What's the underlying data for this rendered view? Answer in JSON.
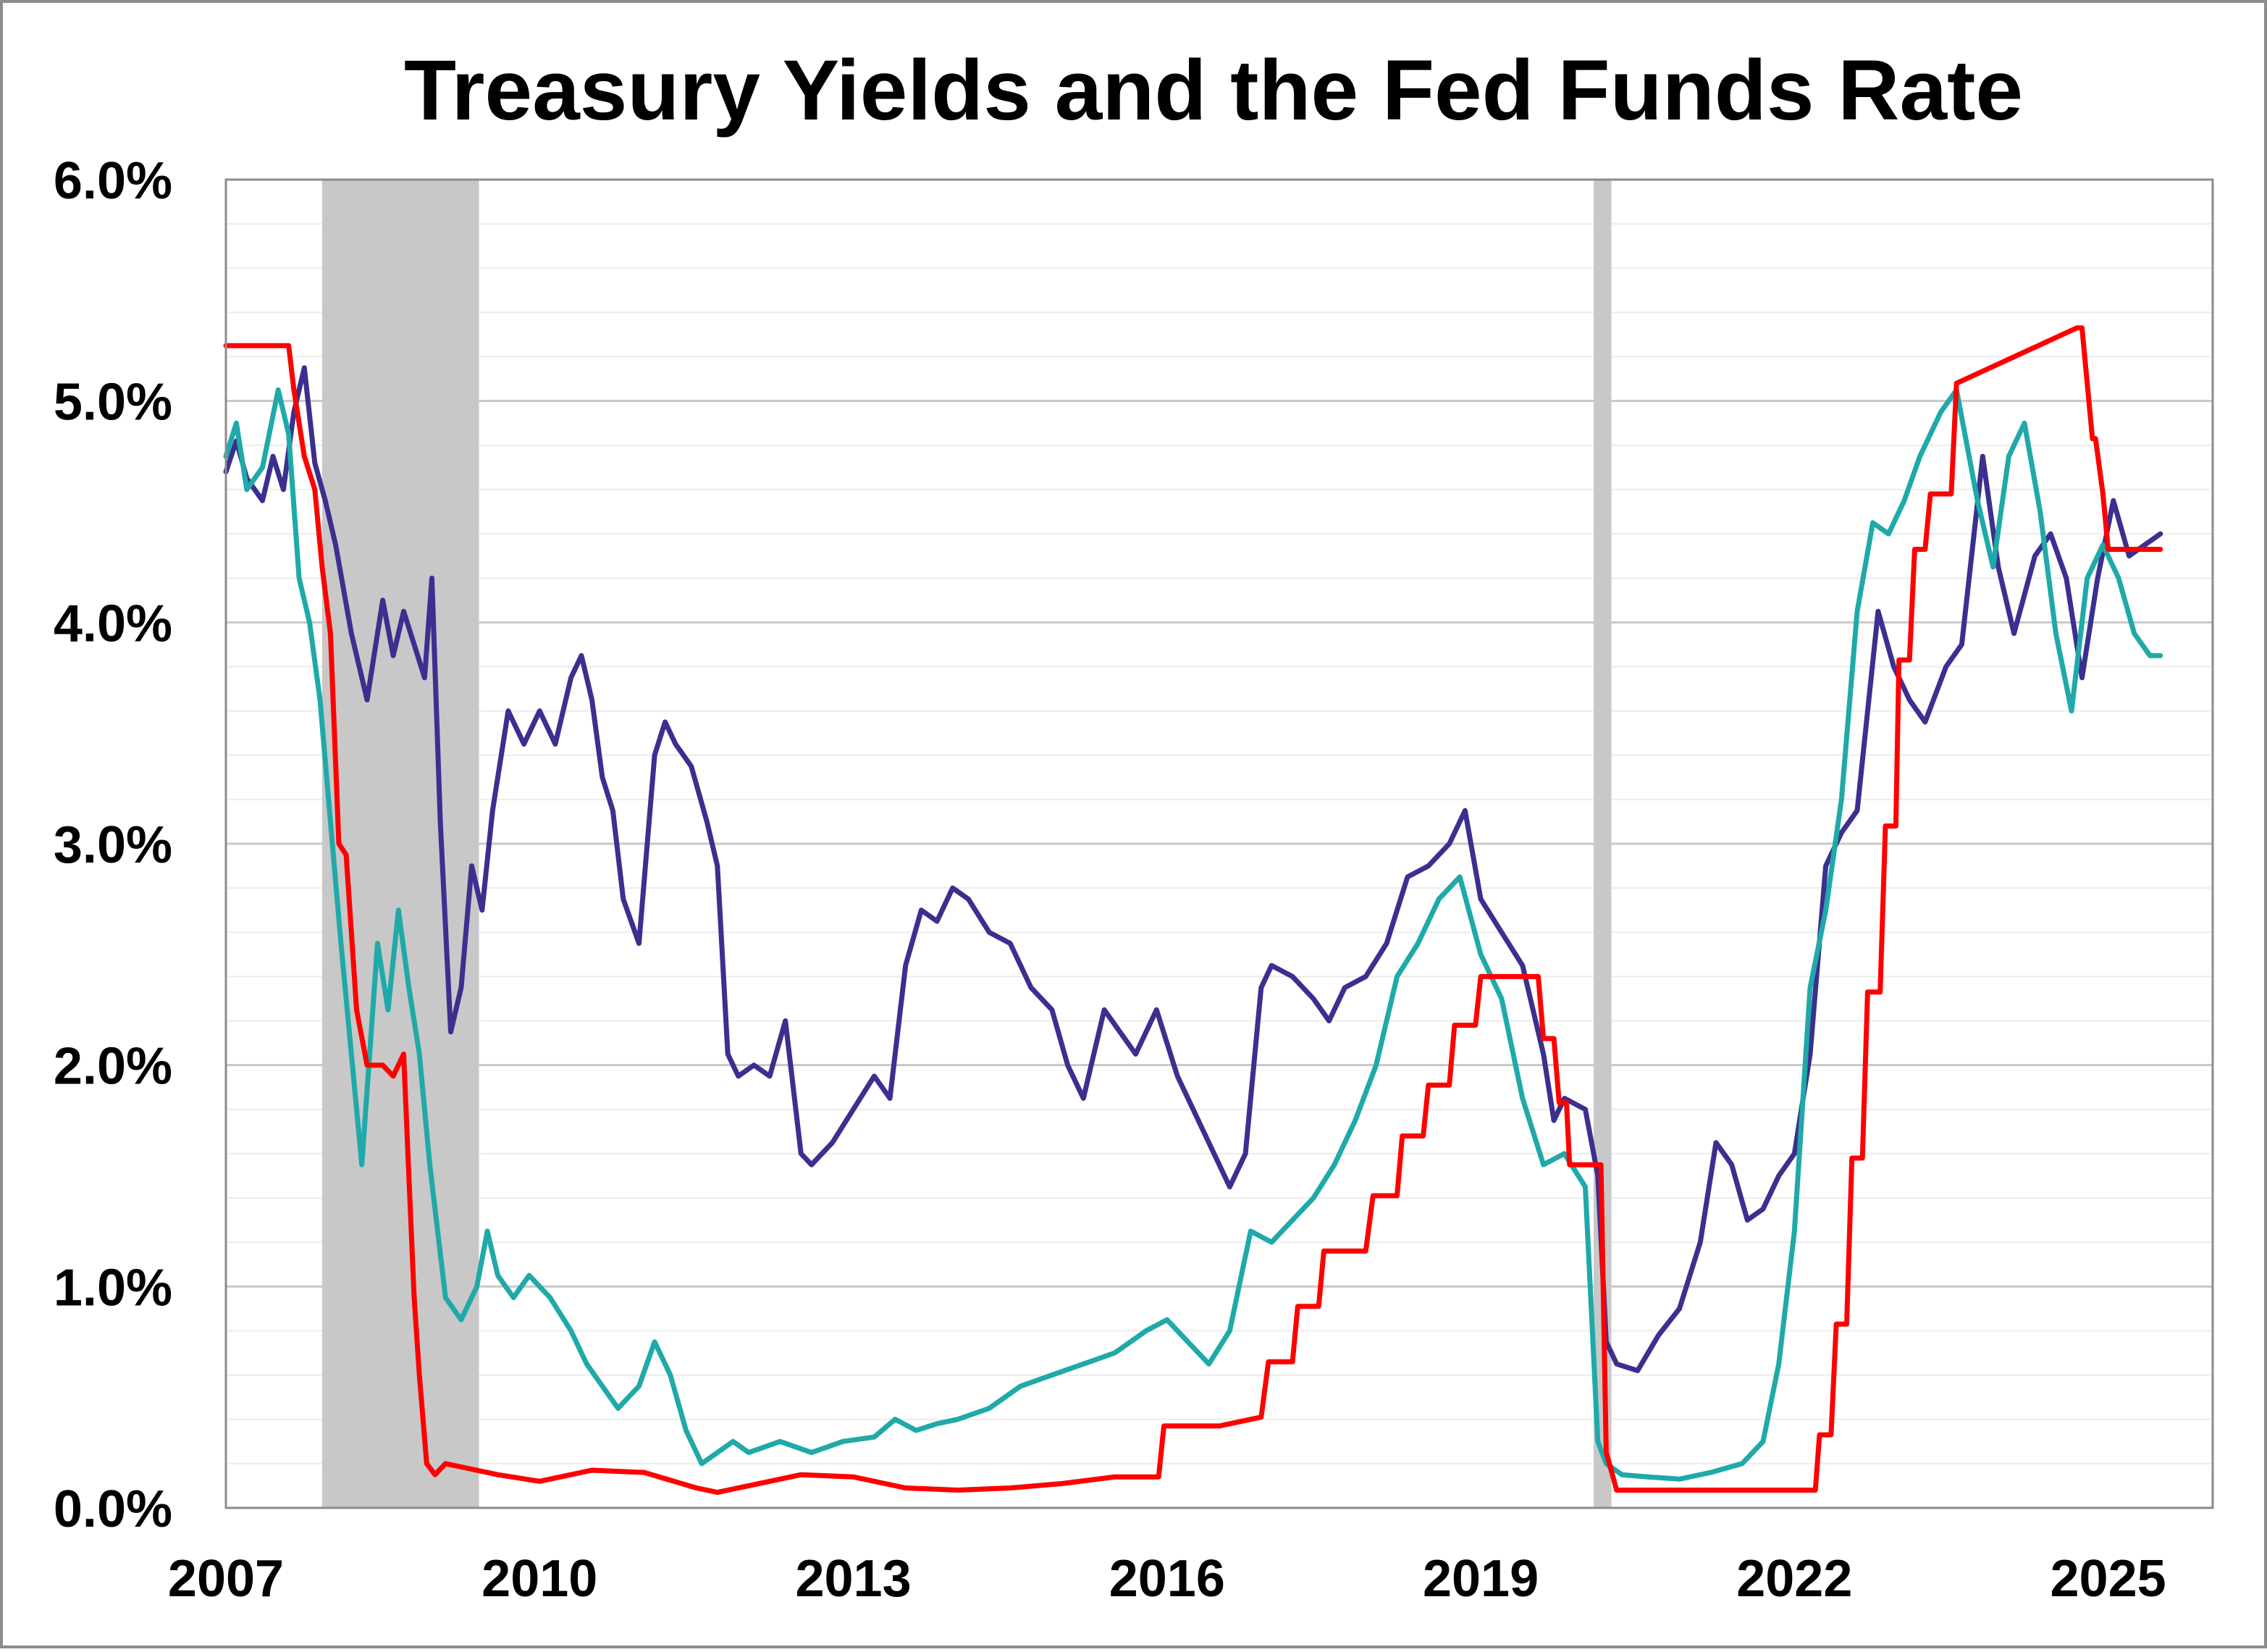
{
  "chart_data": {
    "type": "line",
    "title": "Treasury Yields and the Fed Funds Rate",
    "xlabel": "",
    "ylabel": "",
    "xlim": [
      2007.0,
      2026.0
    ],
    "ylim": [
      0,
      6.0
    ],
    "x_ticks": [
      2007,
      2010,
      2013,
      2016,
      2019,
      2022,
      2025
    ],
    "x_tick_labels": [
      "2007",
      "2010",
      "2013",
      "2016",
      "2019",
      "2022",
      "2025"
    ],
    "y_ticks": [
      0,
      1,
      2,
      3,
      4,
      5,
      6
    ],
    "y_tick_labels": [
      "0.0%",
      "1.0%",
      "2.0%",
      "3.0%",
      "4.0%",
      "5.0%",
      "6.0%"
    ],
    "grid": {
      "major_y": true,
      "minor_y_step": 0.2,
      "x": false
    },
    "legend": "none",
    "recessions": [
      {
        "start": 2007.92,
        "end": 2009.42
      },
      {
        "start": 2020.08,
        "end": 2020.25
      }
    ],
    "series": [
      {
        "color": "#3B2F8F",
        "x": [
          2007.0,
          2007.1,
          2007.2,
          2007.35,
          2007.45,
          2007.55,
          2007.65,
          2007.75,
          2007.85,
          2007.95,
          2008.05,
          2008.2,
          2008.35,
          2008.5,
          2008.6,
          2008.7,
          2008.8,
          2008.9,
          2008.97,
          2009.05,
          2009.15,
          2009.25,
          2009.35,
          2009.45,
          2009.55,
          2009.7,
          2009.85,
          2010.0,
          2010.15,
          2010.3,
          2010.4,
          2010.5,
          2010.6,
          2010.7,
          2010.8,
          2010.95,
          2011.1,
          2011.2,
          2011.3,
          2011.45,
          2011.6,
          2011.7,
          2011.8,
          2011.9,
          2012.05,
          2012.2,
          2012.35,
          2012.5,
          2012.6,
          2012.8,
          2013.0,
          2013.2,
          2013.35,
          2013.5,
          2013.65,
          2013.8,
          2013.95,
          2014.1,
          2014.3,
          2014.5,
          2014.7,
          2014.9,
          2015.05,
          2015.2,
          2015.4,
          2015.55,
          2015.7,
          2015.9,
          2016.1,
          2016.3,
          2016.5,
          2016.6,
          2016.75,
          2016.9,
          2017.0,
          2017.2,
          2017.4,
          2017.55,
          2017.7,
          2017.9,
          2018.1,
          2018.3,
          2018.5,
          2018.7,
          2018.85,
          2019.0,
          2019.2,
          2019.4,
          2019.6,
          2019.7,
          2019.8,
          2020.0,
          2020.12,
          2020.2,
          2020.3,
          2020.5,
          2020.7,
          2020.9,
          2021.1,
          2021.25,
          2021.4,
          2021.55,
          2021.7,
          2021.85,
          2022.0,
          2022.15,
          2022.3,
          2022.45,
          2022.6,
          2022.8,
          2022.95,
          2023.1,
          2023.25,
          2023.45,
          2023.6,
          2023.8,
          2023.95,
          2024.1,
          2024.3,
          2024.45,
          2024.6,
          2024.75,
          2024.9,
          2025.05,
          2025.2,
          2025.35,
          2025.5
        ],
        "y": [
          4.68,
          4.82,
          4.65,
          4.55,
          4.75,
          4.6,
          4.95,
          5.15,
          4.72,
          4.55,
          4.35,
          3.95,
          3.65,
          4.1,
          3.85,
          4.05,
          3.9,
          3.75,
          4.2,
          3.1,
          2.15,
          2.35,
          2.9,
          2.7,
          3.15,
          3.6,
          3.45,
          3.6,
          3.45,
          3.75,
          3.85,
          3.65,
          3.3,
          3.15,
          2.75,
          2.55,
          3.4,
          3.55,
          3.45,
          3.35,
          3.1,
          2.9,
          2.05,
          1.95,
          2.0,
          1.95,
          2.2,
          1.6,
          1.55,
          1.65,
          1.8,
          1.95,
          1.85,
          2.45,
          2.7,
          2.65,
          2.8,
          2.75,
          2.6,
          2.55,
          2.35,
          2.25,
          2.0,
          1.85,
          2.25,
          2.15,
          2.05,
          2.25,
          1.95,
          1.75,
          1.55,
          1.45,
          1.6,
          2.35,
          2.45,
          2.4,
          2.3,
          2.2,
          2.35,
          2.4,
          2.55,
          2.85,
          2.9,
          3.0,
          3.15,
          2.75,
          2.6,
          2.45,
          2.05,
          1.75,
          1.85,
          1.8,
          1.5,
          0.75,
          0.65,
          0.62,
          0.78,
          0.9,
          1.2,
          1.65,
          1.55,
          1.3,
          1.35,
          1.5,
          1.6,
          2.05,
          2.9,
          3.05,
          3.15,
          4.05,
          3.8,
          3.65,
          3.55,
          3.8,
          3.9,
          4.75,
          4.25,
          3.95,
          4.3,
          4.4,
          4.2,
          3.75,
          4.2,
          4.55,
          4.3,
          4.35,
          4.4
        ]
      },
      {
        "color": "#1FA9A9",
        "x": [
          2007.0,
          2007.1,
          2007.2,
          2007.35,
          2007.5,
          2007.6,
          2007.7,
          2007.8,
          2007.9,
          2008.0,
          2008.1,
          2008.2,
          2008.3,
          2008.45,
          2008.55,
          2008.65,
          2008.75,
          2008.85,
          2008.95,
          2009.1,
          2009.25,
          2009.4,
          2009.5,
          2009.6,
          2009.75,
          2009.9,
          2010.1,
          2010.3,
          2010.45,
          2010.6,
          2010.75,
          2010.95,
          2011.1,
          2011.25,
          2011.4,
          2011.55,
          2011.7,
          2011.85,
          2012.0,
          2012.3,
          2012.6,
          2012.9,
          2013.2,
          2013.4,
          2013.6,
          2013.8,
          2014.0,
          2014.3,
          2014.6,
          2014.9,
          2015.2,
          2015.5,
          2015.8,
          2016.0,
          2016.2,
          2016.4,
          2016.6,
          2016.8,
          2017.0,
          2017.2,
          2017.4,
          2017.6,
          2017.8,
          2018.0,
          2018.2,
          2018.4,
          2018.6,
          2018.8,
          2019.0,
          2019.2,
          2019.4,
          2019.6,
          2019.8,
          2020.0,
          2020.12,
          2020.2,
          2020.35,
          2020.6,
          2020.9,
          2021.2,
          2021.5,
          2021.7,
          2021.85,
          2022.0,
          2022.15,
          2022.3,
          2022.45,
          2022.6,
          2022.75,
          2022.9,
          2023.05,
          2023.2,
          2023.4,
          2023.55,
          2023.75,
          2023.9,
          2024.05,
          2024.2,
          2024.35,
          2024.5,
          2024.65,
          2024.8,
          2024.95,
          2025.1,
          2025.25,
          2025.4,
          2025.5
        ],
        "y": [
          4.75,
          4.9,
          4.6,
          4.7,
          5.05,
          4.85,
          4.2,
          4.0,
          3.65,
          3.1,
          2.55,
          2.05,
          1.55,
          2.55,
          2.25,
          2.7,
          2.35,
          2.05,
          1.55,
          0.95,
          0.85,
          1.0,
          1.25,
          1.05,
          0.95,
          1.05,
          0.95,
          0.8,
          0.65,
          0.55,
          0.45,
          0.55,
          0.75,
          0.6,
          0.35,
          0.2,
          0.25,
          0.3,
          0.25,
          0.3,
          0.25,
          0.3,
          0.32,
          0.4,
          0.35,
          0.38,
          0.4,
          0.45,
          0.55,
          0.6,
          0.65,
          0.7,
          0.8,
          0.85,
          0.75,
          0.65,
          0.8,
          1.25,
          1.2,
          1.3,
          1.4,
          1.55,
          1.75,
          2.0,
          2.4,
          2.55,
          2.75,
          2.85,
          2.5,
          2.3,
          1.85,
          1.55,
          1.6,
          1.45,
          0.3,
          0.2,
          0.15,
          0.14,
          0.13,
          0.16,
          0.2,
          0.3,
          0.65,
          1.25,
          2.35,
          2.7,
          3.2,
          4.05,
          4.45,
          4.4,
          4.55,
          4.75,
          4.95,
          5.05,
          4.55,
          4.25,
          4.75,
          4.9,
          4.5,
          3.95,
          3.6,
          4.2,
          4.35,
          4.2,
          3.95,
          3.85,
          3.85
        ]
      },
      {
        "color": "#FF0000",
        "x": [
          2007.0,
          2007.6,
          2007.65,
          2007.75,
          2007.85,
          2007.92,
          2008.0,
          2008.08,
          2008.15,
          2008.25,
          2008.35,
          2008.5,
          2008.6,
          2008.7,
          2008.75,
          2008.8,
          2008.85,
          2008.92,
          2009.0,
          2009.1,
          2009.3,
          2009.6,
          2010.0,
          2010.5,
          2011.0,
          2011.5,
          2011.7,
          2012.0,
          2012.5,
          2013.0,
          2013.5,
          2014.0,
          2014.5,
          2015.0,
          2015.5,
          2015.92,
          2015.97,
          2016.5,
          2016.9,
          2016.97,
          2017.2,
          2017.25,
          2017.45,
          2017.5,
          2017.9,
          2017.97,
          2018.2,
          2018.25,
          2018.45,
          2018.5,
          2018.7,
          2018.75,
          2018.95,
          2019.0,
          2019.55,
          2019.6,
          2019.7,
          2019.75,
          2019.82,
          2019.85,
          2020.15,
          2020.2,
          2020.3,
          2021.0,
          2021.5,
          2022.0,
          2022.2,
          2022.24,
          2022.35,
          2022.4,
          2022.5,
          2022.55,
          2022.65,
          2022.7,
          2022.82,
          2022.87,
          2022.97,
          2023.0,
          2023.1,
          2023.15,
          2023.25,
          2023.3,
          2023.5,
          2023.55,
          2024.7,
          2024.75,
          2024.85,
          2024.88,
          2024.95,
          2025.0,
          2025.5
        ],
        "y": [
          5.25,
          5.25,
          5.05,
          4.75,
          4.6,
          4.25,
          3.95,
          3.0,
          2.95,
          2.25,
          2.0,
          2.0,
          1.95,
          2.05,
          1.5,
          0.95,
          0.6,
          0.2,
          0.15,
          0.2,
          0.18,
          0.15,
          0.12,
          0.17,
          0.16,
          0.09,
          0.07,
          0.1,
          0.15,
          0.14,
          0.09,
          0.08,
          0.09,
          0.11,
          0.14,
          0.14,
          0.37,
          0.37,
          0.41,
          0.66,
          0.66,
          0.91,
          0.91,
          1.16,
          1.16,
          1.41,
          1.41,
          1.68,
          1.68,
          1.91,
          1.91,
          2.18,
          2.18,
          2.4,
          2.4,
          2.12,
          2.12,
          1.83,
          1.83,
          1.55,
          1.55,
          0.25,
          0.08,
          0.08,
          0.08,
          0.08,
          0.08,
          0.33,
          0.33,
          0.83,
          0.83,
          1.58,
          1.58,
          2.33,
          2.33,
          3.08,
          3.08,
          3.83,
          3.83,
          4.33,
          4.33,
          4.58,
          4.58,
          5.08,
          5.33,
          5.33,
          4.83,
          4.83,
          4.58,
          4.33,
          4.33
        ]
      }
    ]
  }
}
